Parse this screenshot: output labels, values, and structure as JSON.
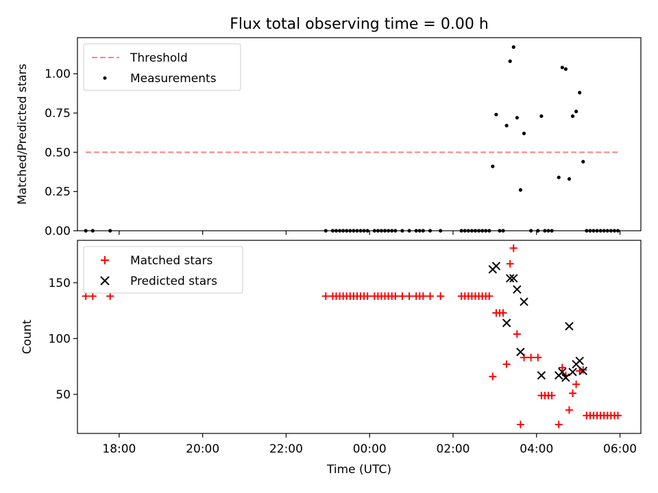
{
  "title": "Flux total observing time = 0.00 h",
  "xlabel": "Time (UTC)",
  "colors": {
    "threshold": "#ff7f7f",
    "measurements": "#000000",
    "matched": "#ff0000",
    "predicted": "#000000"
  },
  "chart_data": [
    {
      "type": "scatter",
      "panel": "top",
      "ylabel": "Matched/Predicted stars",
      "xlim": [
        "17:00",
        "06:30"
      ],
      "ylim": [
        0,
        1.23
      ],
      "yticks": [
        "0.00",
        "0.25",
        "0.50",
        "0.75",
        "1.00"
      ],
      "ytick_values": [
        0,
        0.25,
        0.5,
        0.75,
        1.0
      ],
      "legend": {
        "placement": "upper-left",
        "entries": [
          "Threshold",
          "Measurements"
        ]
      },
      "threshold": {
        "name": "Threshold",
        "y": 0.5,
        "x": [
          "17:12",
          "05:57"
        ],
        "style": "dashed"
      },
      "series": [
        {
          "name": "Measurements",
          "points": [
            [
              "17:12",
              0
            ],
            [
              "17:22",
              0
            ],
            [
              "17:47",
              0
            ],
            [
              "22:57",
              0
            ],
            [
              "23:07",
              0
            ],
            [
              "23:12",
              0
            ],
            [
              "23:17",
              0
            ],
            [
              "23:22",
              0
            ],
            [
              "23:27",
              0
            ],
            [
              "23:32",
              0
            ],
            [
              "23:37",
              0
            ],
            [
              "23:42",
              0
            ],
            [
              "23:47",
              0
            ],
            [
              "23:52",
              0
            ],
            [
              "23:57",
              0
            ],
            [
              "00:07",
              0
            ],
            [
              "00:12",
              0
            ],
            [
              "00:17",
              0
            ],
            [
              "00:22",
              0
            ],
            [
              "00:27",
              0
            ],
            [
              "00:32",
              0
            ],
            [
              "00:37",
              0
            ],
            [
              "00:47",
              0
            ],
            [
              "00:57",
              0
            ],
            [
              "01:07",
              0
            ],
            [
              "01:12",
              0
            ],
            [
              "01:17",
              0
            ],
            [
              "01:27",
              0
            ],
            [
              "01:42",
              0
            ],
            [
              "02:12",
              0
            ],
            [
              "02:17",
              0
            ],
            [
              "02:22",
              0
            ],
            [
              "02:27",
              0
            ],
            [
              "02:32",
              0
            ],
            [
              "02:37",
              0
            ],
            [
              "02:42",
              0
            ],
            [
              "02:47",
              0
            ],
            [
              "02:52",
              0
            ],
            [
              "02:57",
              0.41
            ],
            [
              "03:02",
              0.74
            ],
            [
              "03:07",
              0
            ],
            [
              "03:12",
              0
            ],
            [
              "03:17",
              0.67
            ],
            [
              "03:22",
              1.08
            ],
            [
              "03:27",
              1.17
            ],
            [
              "03:32",
              0.72
            ],
            [
              "03:37",
              0.26
            ],
            [
              "03:42",
              0.62
            ],
            [
              "03:52",
              0
            ],
            [
              "04:02",
              0
            ],
            [
              "04:07",
              0.73
            ],
            [
              "04:12",
              0
            ],
            [
              "04:17",
              0
            ],
            [
              "04:22",
              0
            ],
            [
              "04:32",
              0.34
            ],
            [
              "04:37",
              1.04
            ],
            [
              "04:42",
              1.03
            ],
            [
              "04:47",
              0.33
            ],
            [
              "04:52",
              0.73
            ],
            [
              "04:57",
              0.76
            ],
            [
              "05:02",
              0.88
            ],
            [
              "05:07",
              0.44
            ],
            [
              "05:12",
              0
            ],
            [
              "05:17",
              0
            ],
            [
              "05:22",
              0
            ],
            [
              "05:27",
              0
            ],
            [
              "05:32",
              0
            ],
            [
              "05:37",
              0
            ],
            [
              "05:42",
              0
            ],
            [
              "05:47",
              0
            ],
            [
              "05:52",
              0
            ],
            [
              "05:57",
              0
            ]
          ]
        }
      ]
    },
    {
      "type": "scatter",
      "panel": "bottom",
      "ylabel": "Count",
      "xlim": [
        "17:00",
        "06:30"
      ],
      "ylim": [
        15,
        188
      ],
      "yticks": [
        "50",
        "100",
        "150"
      ],
      "ytick_values": [
        50,
        100,
        150
      ],
      "xticks": [
        "18:00",
        "20:00",
        "22:00",
        "00:00",
        "02:00",
        "04:00",
        "06:00"
      ],
      "legend": {
        "placement": "upper-left",
        "entries": [
          "Matched stars",
          "Predicted stars"
        ]
      },
      "series": [
        {
          "name": "Matched stars",
          "marker": "plus",
          "points": [
            [
              "17:12",
              138
            ],
            [
              "17:22",
              138
            ],
            [
              "17:47",
              138
            ],
            [
              "22:57",
              138
            ],
            [
              "23:07",
              138
            ],
            [
              "23:12",
              138
            ],
            [
              "23:17",
              138
            ],
            [
              "23:22",
              138
            ],
            [
              "23:27",
              138
            ],
            [
              "23:32",
              138
            ],
            [
              "23:37",
              138
            ],
            [
              "23:42",
              138
            ],
            [
              "23:47",
              138
            ],
            [
              "23:52",
              138
            ],
            [
              "23:57",
              138
            ],
            [
              "00:07",
              138
            ],
            [
              "00:12",
              138
            ],
            [
              "00:17",
              138
            ],
            [
              "00:22",
              138
            ],
            [
              "00:27",
              138
            ],
            [
              "00:32",
              138
            ],
            [
              "00:37",
              138
            ],
            [
              "00:47",
              138
            ],
            [
              "00:57",
              138
            ],
            [
              "01:07",
              138
            ],
            [
              "01:12",
              138
            ],
            [
              "01:17",
              138
            ],
            [
              "01:27",
              138
            ],
            [
              "01:42",
              138
            ],
            [
              "02:12",
              138
            ],
            [
              "02:17",
              138
            ],
            [
              "02:22",
              138
            ],
            [
              "02:27",
              138
            ],
            [
              "02:32",
              138
            ],
            [
              "02:37",
              138
            ],
            [
              "02:42",
              138
            ],
            [
              "02:47",
              138
            ],
            [
              "02:52",
              138
            ],
            [
              "02:57",
              66
            ],
            [
              "03:02",
              123
            ],
            [
              "03:07",
              123
            ],
            [
              "03:12",
              123
            ],
            [
              "03:17",
              77
            ],
            [
              "03:22",
              167
            ],
            [
              "03:27",
              181
            ],
            [
              "03:32",
              104
            ],
            [
              "03:37",
              23
            ],
            [
              "03:42",
              83
            ],
            [
              "03:52",
              83
            ],
            [
              "04:02",
              83
            ],
            [
              "04:07",
              49
            ],
            [
              "04:12",
              49
            ],
            [
              "04:17",
              49
            ],
            [
              "04:22",
              49
            ],
            [
              "04:32",
              23
            ],
            [
              "04:37",
              74
            ],
            [
              "04:42",
              67
            ],
            [
              "04:47",
              36
            ],
            [
              "04:52",
              51
            ],
            [
              "04:57",
              59
            ],
            [
              "05:02",
              71
            ],
            [
              "05:07",
              72
            ],
            [
              "05:12",
              31
            ],
            [
              "05:17",
              31
            ],
            [
              "05:22",
              31
            ],
            [
              "05:27",
              31
            ],
            [
              "05:32",
              31
            ],
            [
              "05:37",
              31
            ],
            [
              "05:42",
              31
            ],
            [
              "05:47",
              31
            ],
            [
              "05:52",
              31
            ],
            [
              "05:57",
              31
            ]
          ]
        },
        {
          "name": "Predicted stars",
          "marker": "x",
          "points": [
            [
              "02:57",
              162
            ],
            [
              "03:02",
              165
            ],
            [
              "03:17",
              114
            ],
            [
              "03:22",
              154
            ],
            [
              "03:27",
              154
            ],
            [
              "03:32",
              144
            ],
            [
              "03:37",
              88
            ],
            [
              "03:42",
              133
            ],
            [
              "04:07",
              67
            ],
            [
              "04:32",
              67
            ],
            [
              "04:37",
              70
            ],
            [
              "04:42",
              65
            ],
            [
              "04:47",
              111
            ],
            [
              "04:52",
              70
            ],
            [
              "04:57",
              77
            ],
            [
              "05:02",
              80
            ],
            [
              "05:07",
              71
            ]
          ]
        }
      ]
    }
  ]
}
